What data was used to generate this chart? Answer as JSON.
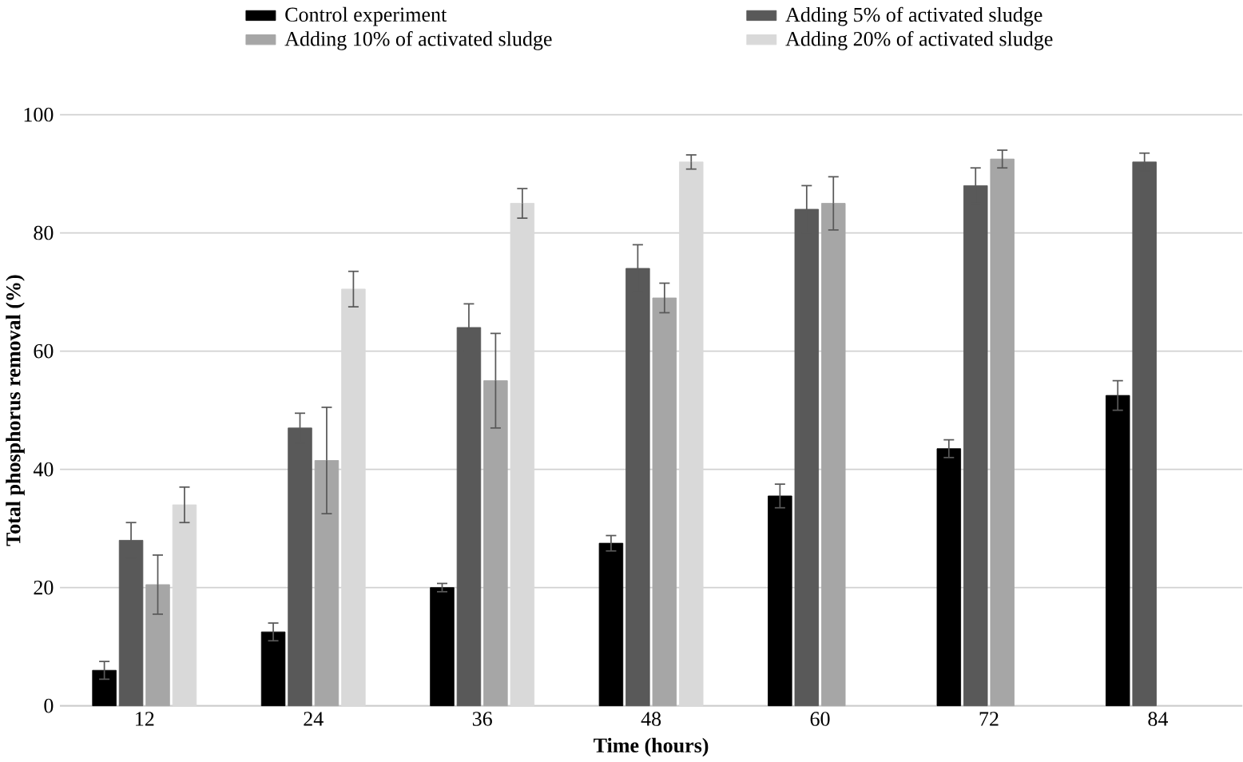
{
  "chart_data": {
    "type": "bar",
    "xlabel": "Time (hours)",
    "ylabel": "Total phosphorus removal (%)",
    "categories": [
      "12",
      "24",
      "36",
      "48",
      "60",
      "72",
      "84"
    ],
    "series": [
      {
        "name": "Control experiment",
        "color": "#000000",
        "values": [
          6,
          12.5,
          20,
          27.5,
          35.5,
          43.5,
          52.5
        ],
        "errors": [
          1.5,
          1.5,
          0.7,
          1.3,
          2,
          1.5,
          2.5
        ]
      },
      {
        "name": "Adding 5% of activated sludge",
        "color": "#595959",
        "values": [
          28,
          47,
          64,
          74,
          84,
          88,
          92
        ],
        "errors": [
          3,
          2.5,
          4,
          4,
          4,
          3,
          1.5
        ]
      },
      {
        "name": "Adding 10% of activated sludge",
        "color": "#a6a6a6",
        "values": [
          20.5,
          41.5,
          55,
          69,
          85,
          92.5,
          null
        ],
        "errors": [
          5,
          9,
          8,
          2.5,
          4.5,
          1.5,
          null
        ]
      },
      {
        "name": "Adding 20% of activated sludge",
        "color": "#d9d9d9",
        "values": [
          34,
          70.5,
          85,
          92,
          null,
          null,
          null
        ],
        "errors": [
          3,
          3,
          2.5,
          1.2,
          null,
          null,
          null
        ]
      }
    ],
    "ylim": [
      0,
      100
    ],
    "yticks": [
      0,
      20,
      40,
      60,
      80,
      100
    ],
    "grid": "y",
    "legend": "top"
  }
}
